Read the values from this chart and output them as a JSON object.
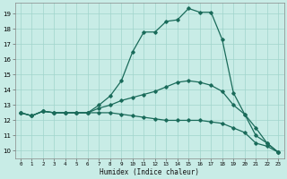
{
  "xlabel": "Humidex (Indice chaleur)",
  "xlim": [
    -0.5,
    23.5
  ],
  "ylim": [
    9.5,
    19.7
  ],
  "xticks": [
    0,
    1,
    2,
    3,
    4,
    5,
    6,
    7,
    8,
    9,
    10,
    11,
    12,
    13,
    14,
    15,
    16,
    17,
    18,
    19,
    20,
    21,
    22,
    23
  ],
  "yticks": [
    10,
    11,
    12,
    13,
    14,
    15,
    16,
    17,
    18,
    19
  ],
  "background_color": "#c8ece6",
  "grid_color": "#a0d4cc",
  "line_color": "#1a6b5a",
  "series": [
    {
      "x": [
        0,
        1,
        2,
        3,
        4,
        5,
        6,
        7,
        8,
        9,
        10,
        11,
        12,
        13,
        14,
        15,
        16,
        17,
        18,
        19,
        20,
        21,
        22,
        23
      ],
      "y": [
        12.5,
        12.3,
        12.6,
        12.5,
        12.5,
        12.5,
        12.5,
        13.0,
        13.6,
        14.6,
        16.5,
        17.8,
        17.8,
        18.5,
        18.6,
        19.35,
        19.1,
        19.1,
        17.3,
        13.8,
        12.4,
        11.0,
        10.5,
        9.9
      ]
    },
    {
      "x": [
        0,
        1,
        2,
        3,
        4,
        5,
        6,
        7,
        8,
        9,
        10,
        11,
        12,
        13,
        14,
        15,
        16,
        17,
        18,
        19,
        20,
        21,
        22,
        23
      ],
      "y": [
        12.5,
        12.3,
        12.6,
        12.5,
        12.5,
        12.5,
        12.5,
        12.8,
        13.0,
        13.3,
        13.5,
        13.7,
        13.9,
        14.2,
        14.5,
        14.6,
        14.5,
        14.3,
        13.9,
        13.0,
        12.4,
        11.5,
        10.5,
        9.9
      ]
    },
    {
      "x": [
        0,
        1,
        2,
        3,
        4,
        5,
        6,
        7,
        8,
        9,
        10,
        11,
        12,
        13,
        14,
        15,
        16,
        17,
        18,
        19,
        20,
        21,
        22,
        23
      ],
      "y": [
        12.5,
        12.3,
        12.6,
        12.5,
        12.5,
        12.5,
        12.5,
        12.5,
        12.5,
        12.4,
        12.3,
        12.2,
        12.1,
        12.0,
        12.0,
        12.0,
        12.0,
        11.9,
        11.8,
        11.5,
        11.2,
        10.5,
        10.3,
        9.9
      ]
    }
  ]
}
